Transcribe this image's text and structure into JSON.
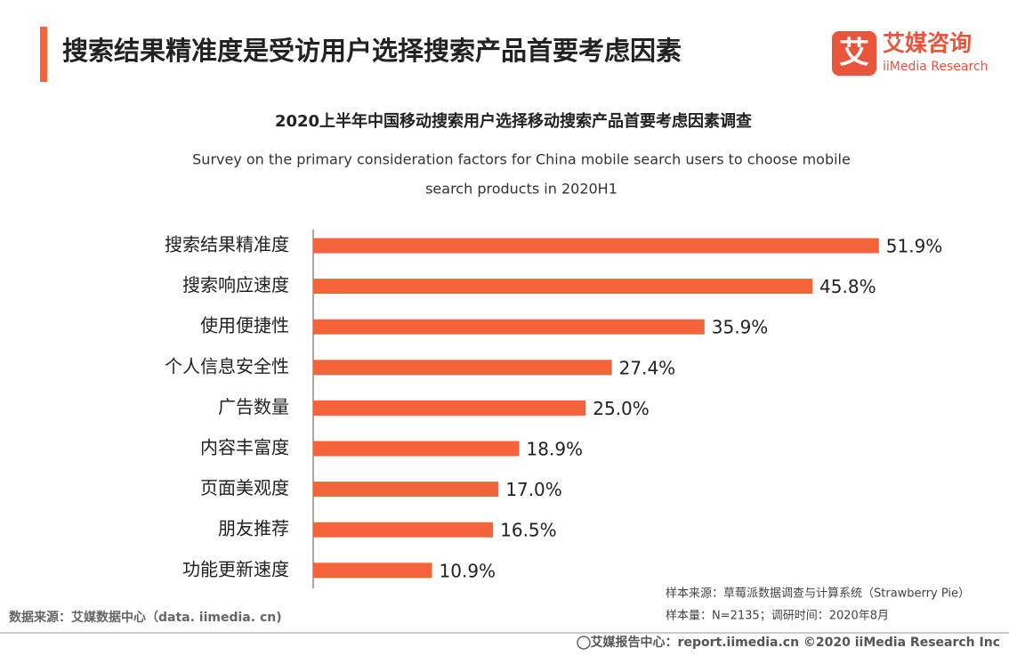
{
  "header": {
    "title": "搜索结果精准度是受访用户选择搜索产品首要考虑因素"
  },
  "logo": {
    "icon": "艾",
    "name": "艾媒咨询",
    "subtitle": "iiMedia Research"
  },
  "chart_data": {
    "type": "bar",
    "title": "2020上半年中国移动搜索用户选择移动搜索产品首要考虑因素调查",
    "subtitle": [
      "Survey on the primary consideration factors for China mobile search users to choose mobile",
      "search products in 2020H1"
    ],
    "categories": [
      "搜索结果精准度",
      "搜索响应速度",
      "使用便捷性",
      "个人信息安全性",
      "广告数量",
      "内容丰富度",
      "页面美观度",
      "朋友推荐",
      "功能更新速度"
    ],
    "values": [
      51.9,
      45.8,
      35.9,
      27.4,
      25.0,
      18.9,
      17.0,
      16.5,
      10.9
    ],
    "value_labels": [
      "51.9%",
      "45.8%",
      "35.9%",
      "27.4%",
      "25.0%",
      "18.9%",
      "17.0%",
      "16.5%",
      "10.9%"
    ],
    "color": "#f4643a"
  },
  "footer": {
    "source": "数据来源：艾媒数据中心（data. iimedia. cn)",
    "sample_source": "样本来源：草莓派数据调查与计算系统（Strawberry Pie）",
    "sample_size": "样本量：N=2135；调研时间：2020年8月",
    "copyright": "艾媒报告中心：report.iimedia.cn  ©2020  iiMedia Research  Inc"
  }
}
